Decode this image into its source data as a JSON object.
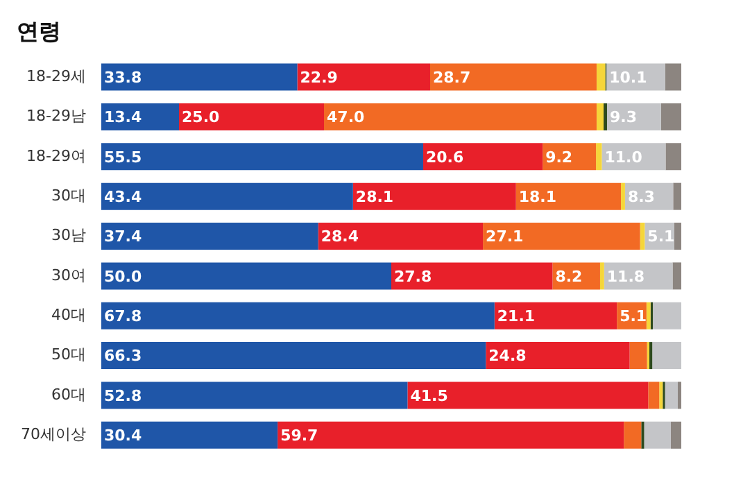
{
  "chart_data": {
    "type": "bar",
    "orientation": "horizontal",
    "stacked": true,
    "title": "연령",
    "categories": [
      "18-29세",
      "18-29남",
      "18-29여",
      "30대",
      "30남",
      "30여",
      "40대",
      "50대",
      "60대",
      "70세이상"
    ],
    "xlim": [
      0,
      100
    ],
    "tick_labels": "y",
    "series": [
      {
        "color": "#1f56a8",
        "values": [
          33.8,
          13.4,
          55.5,
          43.4,
          37.4,
          50.0,
          67.8,
          66.3,
          52.8,
          30.4
        ],
        "value_labels": [
          "33.8",
          "13.4",
          "55.5",
          "43.4",
          "37.4",
          "50.0",
          "67.8",
          "66.3",
          "52.8",
          "30.4"
        ]
      },
      {
        "color": "#e8202a",
        "values": [
          22.9,
          25.0,
          20.6,
          28.1,
          28.4,
          27.8,
          21.1,
          24.8,
          41.5,
          59.7
        ],
        "value_labels": [
          "22.9",
          "25.0",
          "20.6",
          "28.1",
          "28.4",
          "27.8",
          "21.1",
          "24.8",
          "41.5",
          "59.7"
        ]
      },
      {
        "color": "#f26a24",
        "values": [
          28.7,
          47.0,
          9.2,
          18.1,
          27.1,
          8.2,
          5.1,
          3.0,
          1.9,
          3.0
        ],
        "value_labels": [
          "28.7",
          "47.0",
          "9.2",
          "18.1",
          "27.1",
          "8.2",
          "5.1",
          null,
          null,
          null
        ]
      },
      {
        "color": "#f5d63a",
        "values": [
          1.5,
          1.2,
          1.0,
          0.7,
          0.8,
          0.7,
          0.7,
          0.4,
          0.6,
          null
        ],
        "value_labels": [
          null,
          null,
          null,
          null,
          null,
          null,
          null,
          null,
          null,
          null
        ]
      },
      {
        "color": "#2d4a1e",
        "values": [
          0.2,
          0.6,
          null,
          null,
          null,
          null,
          0.4,
          0.5,
          0.4,
          0.5
        ],
        "value_labels": [
          null,
          null,
          null,
          null,
          null,
          null,
          null,
          null,
          null,
          null
        ]
      },
      {
        "color": "#c4c5c8",
        "values": [
          10.1,
          9.3,
          11.0,
          8.3,
          5.1,
          11.8,
          4.9,
          5.0,
          2.2,
          4.6
        ],
        "value_labels": [
          "10.1",
          "9.3",
          "11.0",
          "8.3",
          "5.1",
          "11.8",
          null,
          null,
          null,
          null
        ]
      },
      {
        "color": "#8c8580",
        "values": [
          2.8,
          3.5,
          2.7,
          1.4,
          1.2,
          1.5,
          null,
          null,
          0.6,
          1.8
        ],
        "value_labels": [
          null,
          null,
          null,
          null,
          null,
          null,
          null,
          null,
          null,
          null
        ]
      }
    ]
  }
}
